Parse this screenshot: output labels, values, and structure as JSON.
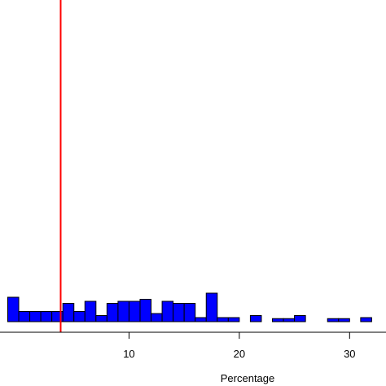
{
  "chart_data": {
    "type": "bar",
    "title": "",
    "xlabel": "Percentage",
    "ylabel": "",
    "xlim": [
      -1.7,
      33.3
    ],
    "ylim": [
      0,
      11
    ],
    "x_ticks": [
      10,
      20,
      30
    ],
    "bin_width": 1,
    "bins": [
      {
        "x0": -1,
        "count": 1.2
      },
      {
        "x0": 0,
        "count": 0.5
      },
      {
        "x0": 1,
        "count": 0.5
      },
      {
        "x0": 2,
        "count": 0.5
      },
      {
        "x0": 3,
        "count": 0.5
      },
      {
        "x0": 4,
        "count": 0.9
      },
      {
        "x0": 5,
        "count": 0.5
      },
      {
        "x0": 6,
        "count": 1.0
      },
      {
        "x0": 7,
        "count": 0.3
      },
      {
        "x0": 8,
        "count": 0.9
      },
      {
        "x0": 9,
        "count": 1.0
      },
      {
        "x0": 10,
        "count": 1.0
      },
      {
        "x0": 11,
        "count": 1.1
      },
      {
        "x0": 12,
        "count": 0.4
      },
      {
        "x0": 13,
        "count": 1.0
      },
      {
        "x0": 14,
        "count": 0.9
      },
      {
        "x0": 15,
        "count": 0.9
      },
      {
        "x0": 16,
        "count": 0.2
      },
      {
        "x0": 17,
        "count": 1.4
      },
      {
        "x0": 18,
        "count": 0.2
      },
      {
        "x0": 19,
        "count": 0.2
      },
      {
        "x0": 21,
        "count": 0.3
      },
      {
        "x0": 23,
        "count": 0.15
      },
      {
        "x0": 24,
        "count": 0.15
      },
      {
        "x0": 25,
        "count": 0.3
      },
      {
        "x0": 28,
        "count": 0.15
      },
      {
        "x0": 29,
        "count": 0.15
      },
      {
        "x0": 31,
        "count": 0.2
      }
    ],
    "reference_line": {
      "x": 3.8,
      "color": "#ff0000"
    },
    "bar_color": "#0000ff",
    "bar_edge_color": "#000000",
    "grid": false
  }
}
